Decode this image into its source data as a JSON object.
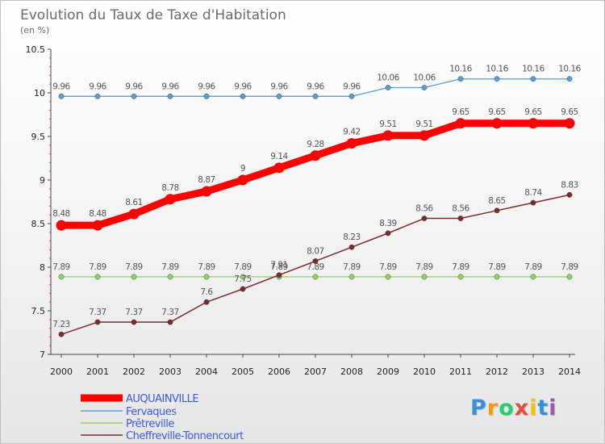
{
  "chart_data": {
    "type": "line",
    "title": "Evolution du Taux de Taxe d'Habitation",
    "subtitle": "(en %)",
    "x": [
      "2000",
      "2001",
      "2002",
      "2003",
      "2004",
      "2005",
      "2006",
      "2007",
      "2008",
      "2009",
      "2010",
      "2011",
      "2012",
      "2013",
      "2014"
    ],
    "y_ticks": [
      "7",
      "7.5",
      "8",
      "8.5",
      "9",
      "9.5",
      "10",
      "10.5"
    ],
    "ylim": [
      7,
      10.5
    ],
    "grid": false,
    "legend_position": "bottom-left",
    "series": [
      {
        "name": "AUQUAINVILLE",
        "color": "#ff0000",
        "values": [
          8.48,
          8.48,
          8.61,
          8.78,
          8.87,
          9,
          9.14,
          9.28,
          9.42,
          9.51,
          9.51,
          9.65,
          9.65,
          9.65,
          9.65
        ],
        "labels": [
          "8.48",
          "8.48",
          "8.61",
          "8.78",
          "8.87",
          "9",
          "9.14",
          "9.28",
          "9.42",
          "9.51",
          "9.51",
          "9.65",
          "9.65",
          "9.65",
          "9.65"
        ]
      },
      {
        "name": "Fervaques",
        "color": "#5a9fd4",
        "values": [
          9.96,
          9.96,
          9.96,
          9.96,
          9.96,
          9.96,
          9.96,
          9.96,
          9.96,
          10.06,
          10.06,
          10.16,
          10.16,
          10.16,
          10.16
        ],
        "labels": [
          "9.96",
          "9.96",
          "9.96",
          "9.96",
          "9.96",
          "9.96",
          "9.96",
          "9.96",
          "9.96",
          "10.06",
          "10.06",
          "10.16",
          "10.16",
          "10.16",
          "10.16"
        ]
      },
      {
        "name": "Prêtreville",
        "color": "#8fd35c",
        "values": [
          7.89,
          7.89,
          7.89,
          7.89,
          7.89,
          7.89,
          7.89,
          7.89,
          7.89,
          7.89,
          7.89,
          7.89,
          7.89,
          7.89,
          7.89
        ],
        "labels": [
          "7.89",
          "7.89",
          "7.89",
          "7.89",
          "7.89",
          "7.89",
          "7.89",
          "7.89",
          "7.89",
          "7.89",
          "7.89",
          "7.89",
          "7.89",
          "7.89",
          "7.89"
        ]
      },
      {
        "name": "Cheffreville-Tonnencourt",
        "color": "#7b2b2b",
        "values": [
          7.23,
          7.37,
          7.37,
          7.37,
          7.6,
          7.75,
          7.91,
          8.07,
          8.23,
          8.39,
          8.56,
          8.56,
          8.65,
          8.74,
          8.83
        ],
        "labels": [
          "7.23",
          "7.37",
          "7.37",
          "7.37",
          "7.6",
          "7.75",
          "7.91",
          "8.07",
          "8.23",
          "8.39",
          "8.56",
          "8.56",
          "8.65",
          "8.74",
          "8.83"
        ]
      }
    ]
  },
  "logo": {
    "letters": [
      "P",
      "r",
      "o",
      "x",
      "i",
      "t",
      "i"
    ],
    "colors": [
      "#3a8fd9",
      "#f39c12",
      "#2ecc71",
      "#e74c3c",
      "#f1c40f",
      "#3a8fd9",
      "#9b59b6"
    ]
  }
}
